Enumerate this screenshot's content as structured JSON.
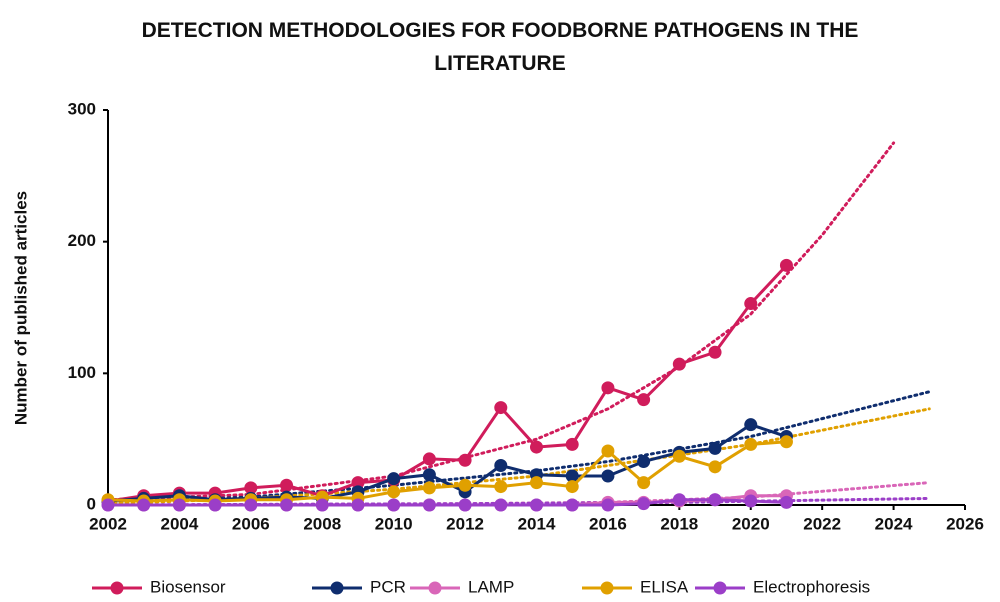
{
  "chart_data": {
    "type": "line",
    "title": "DETECTION METHODOLOGIES FOR FOODBORNE PATHOGENS IN THE LITERATURE",
    "y_label": "Number of published articles",
    "x": [
      2002,
      2003,
      2004,
      2005,
      2006,
      2007,
      2008,
      2009,
      2010,
      2011,
      2012,
      2013,
      2014,
      2015,
      2016,
      2017,
      2018,
      2019,
      2020,
      2021
    ],
    "xlim": [
      2002,
      2026
    ],
    "xticks": [
      2002,
      2004,
      2006,
      2008,
      2010,
      2012,
      2014,
      2016,
      2018,
      2020,
      2022,
      2024,
      2026
    ],
    "ylim": [
      0,
      300
    ],
    "yticks": [
      0,
      100,
      200,
      300
    ],
    "grid": false,
    "legend": "bottom",
    "series": [
      {
        "name": "Biosensor",
        "color": "#d01c5b",
        "values": [
          3,
          7,
          9,
          9,
          13,
          15,
          7,
          17,
          19,
          35,
          34,
          74,
          44,
          46,
          89,
          80,
          107,
          116,
          153,
          182
        ],
        "trend": {
          "x": [
            2002,
            2006,
            2010,
            2014,
            2016,
            2018,
            2020,
            2022,
            2024
          ],
          "values": [
            4,
            8,
            22,
            50,
            73,
            105,
            145,
            205,
            275
          ]
        }
      },
      {
        "name": "PCR",
        "color": "#0f2d6e",
        "values": [
          3,
          5,
          7,
          4,
          5,
          6,
          5,
          10,
          20,
          23,
          10,
          30,
          23,
          22,
          22,
          33,
          40,
          43,
          61,
          52
        ],
        "trend": {
          "x": [
            2002,
            2006,
            2010,
            2014,
            2016,
            2020,
            2025
          ],
          "values": [
            2,
            6,
            15,
            26,
            33,
            52,
            86
          ]
        }
      },
      {
        "name": "LAMP",
        "color": "#d966b8",
        "values": [
          0,
          0,
          0,
          0,
          0,
          0,
          0,
          0,
          0,
          0,
          0,
          0,
          0,
          0,
          2,
          2,
          3,
          4,
          7,
          7
        ],
        "trend": {
          "x": [
            2002,
            2012,
            2016,
            2020,
            2025
          ],
          "values": [
            0,
            1,
            2,
            6,
            17
          ]
        }
      },
      {
        "name": "ELISA",
        "color": "#e0a000",
        "values": [
          4,
          3,
          4,
          3,
          4,
          4,
          6,
          5,
          10,
          13,
          15,
          14,
          17,
          14,
          41,
          17,
          37,
          29,
          46,
          48
        ],
        "trend": {
          "x": [
            2002,
            2006,
            2010,
            2014,
            2016,
            2020,
            2025
          ],
          "values": [
            1,
            5,
            12,
            22,
            30,
            46,
            73
          ]
        }
      },
      {
        "name": "Electrophoresis",
        "color": "#9b3ec8",
        "values": [
          0,
          0,
          0,
          0,
          0,
          0,
          0,
          0,
          0,
          0,
          0,
          0,
          0,
          0,
          0,
          1,
          4,
          4,
          3,
          2
        ],
        "trend": {
          "x": [
            2002,
            2012,
            2018,
            2025
          ],
          "values": [
            0,
            1,
            2,
            5
          ]
        }
      }
    ]
  }
}
